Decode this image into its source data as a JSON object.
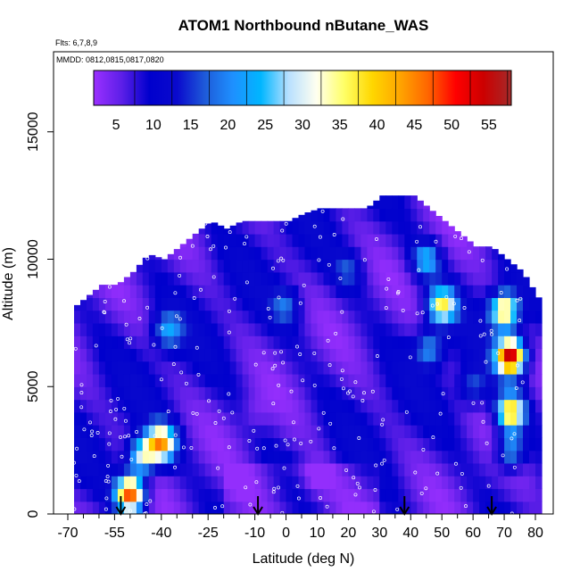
{
  "chart_data": {
    "type": "heatmap",
    "title": "ATOM1 Northbound nButane_WAS",
    "flights_note": "Flts: 6,7,8,9",
    "dates_note": "MMDD: 0812,0815,0817,0820",
    "xlabel": "Latitude (deg N)",
    "ylabel": "Altitude (m)",
    "xlim": [
      -70,
      80
    ],
    "ylim": [
      0,
      17500
    ],
    "x_ticks": [
      -70,
      -55,
      -40,
      -25,
      -10,
      0,
      10,
      20,
      30,
      40,
      50,
      60,
      70,
      80
    ],
    "x_ticks_minor": [
      -65,
      -60,
      -50,
      -45,
      -35,
      -30,
      -20,
      -15,
      -5,
      5,
      15,
      25,
      35,
      45,
      55,
      65,
      75
    ],
    "y_ticks": [
      0,
      5000,
      10000,
      15000
    ],
    "colorbar": {
      "ticks": [
        5,
        10,
        15,
        20,
        25,
        30,
        35,
        40,
        45,
        50,
        55
      ],
      "range": [
        2,
        58
      ],
      "stops": [
        "#9b30ff",
        "#5d1fe8",
        "#0000cd",
        "#0a0acd",
        "#1e5bd9",
        "#1e90ff",
        "#00b6ff",
        "#b8e0ff",
        "#fffff0",
        "#ffff66",
        "#ffd700",
        "#ffa500",
        "#ff6600",
        "#ff0000",
        "#cc0000",
        "#a52a2a"
      ]
    },
    "envelope": {
      "latitude": [
        -70,
        -65,
        -60,
        -55,
        -50,
        -45,
        -40,
        -35,
        -30,
        -25,
        -20,
        -15,
        -10,
        -5,
        0,
        5,
        10,
        15,
        20,
        25,
        30,
        35,
        40,
        45,
        50,
        55,
        60,
        65,
        70,
        75,
        80
      ],
      "max_altitude_m": [
        8000,
        8500,
        9000,
        9000,
        9500,
        10200,
        10000,
        10500,
        11000,
        11500,
        11200,
        11500,
        11500,
        11500,
        11500,
        11800,
        12000,
        12000,
        12000,
        12000,
        12500,
        12500,
        12500,
        12000,
        11500,
        11000,
        10500,
        10500,
        10000,
        9500,
        8500
      ]
    },
    "features": [
      {
        "latitude": -46,
        "altitude_m": 2300,
        "value": 32
      },
      {
        "latitude": -50,
        "altitude_m": 800,
        "value": 50
      },
      {
        "latitude": -40,
        "altitude_m": 2800,
        "value": 42
      },
      {
        "latitude": -38,
        "altitude_m": 7200,
        "value": 22
      },
      {
        "latitude": 0,
        "altitude_m": 8200,
        "value": 18
      },
      {
        "latitude": 20,
        "altitude_m": 9600,
        "value": 16
      },
      {
        "latitude": 45,
        "altitude_m": 10000,
        "value": 24
      },
      {
        "latitude": 50,
        "altitude_m": 8200,
        "value": 36
      },
      {
        "latitude": 46,
        "altitude_m": 6500,
        "value": 22
      },
      {
        "latitude": 70,
        "altitude_m": 8000,
        "value": 40
      },
      {
        "latitude": 72,
        "altitude_m": 6200,
        "value": 56
      },
      {
        "latitude": 72,
        "altitude_m": 4000,
        "value": 42
      },
      {
        "latitude": 72,
        "altitude_m": 2500,
        "value": 25
      },
      {
        "latitude": 60,
        "altitude_m": 5000,
        "value": 18
      },
      {
        "latitude": 10,
        "altitude_m": 1500,
        "value": 3
      },
      {
        "latitude": -10,
        "altitude_m": 4000,
        "value": 5
      }
    ],
    "arrows_latitude": [
      -53,
      -9,
      38,
      66
    ]
  }
}
